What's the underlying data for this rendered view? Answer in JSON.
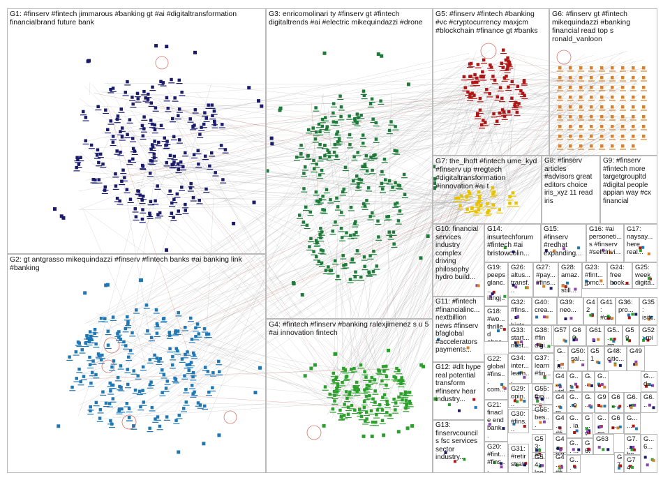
{
  "graph": {
    "colors": {
      "edge": "#9a9a9a",
      "edge_red": "#c0392b",
      "g1": "#1b1b6b",
      "g2": "#1f77b4",
      "g3": "#1e7b3a",
      "g4": "#2ca02c",
      "g5": "#b01515",
      "g6": "#d9822b",
      "g7": "#e6c200",
      "g8": "#8e44ad",
      "panel_border": "#b9b9b9"
    },
    "groups": [
      {
        "id": "G1",
        "label": "G1: #finserv #fintech jimmarous #banking gt #ai #digitaltransformation financialbrand future bank"
      },
      {
        "id": "G2",
        "label": "G2: gt antgrasso mikequindazzi #finserv #fintech banks #ai banking link #banking"
      },
      {
        "id": "G3",
        "label": "G3: enricomolinari ty #finserv gt #fintech digitaltrends #ai #electric mikequindazzi #drone"
      },
      {
        "id": "G4",
        "label": "G4: #fintech #finserv #banking ralexjimenez s u 5 #ai innovation fintech"
      },
      {
        "id": "G5",
        "label": "G5: #finserv #fintech #banking #vc #cryptocurrency maxjcm #blockchain #finance gt #banks"
      },
      {
        "id": "G6",
        "label": "G6: #finserv gt #fintech mikequindazzi #banking financial read top s ronald_vanloon"
      },
      {
        "id": "G7",
        "label": "G7: the_lhoft #fintech ume_kyd #finserv up #regtech #digitaltransformation #innovation #ai t"
      },
      {
        "id": "G8",
        "label": "G8: #finserv articles #advisors great editors choice iris_xyz 11 read iris"
      },
      {
        "id": "G9",
        "label": "G9: #finserv #fintech more targetgroupltd #digital people appian way #cx financial"
      },
      {
        "id": "G10",
        "label": "G10: financial services industry complex driving philosophy hydro build..."
      },
      {
        "id": "G11",
        "label": "G11: #fintech #financialinc... nextbillion news #finserv bfaglobal #accelerators payments..."
      },
      {
        "id": "G12",
        "label": "G12: #dlt hype real potential transform #finserv hear industry..."
      },
      {
        "id": "G13",
        "label": "G13: finservcouncil s fsc services sector industry..."
      },
      {
        "id": "G14",
        "label": "G14: insurtechforum #fintech #ai bristowcolin..."
      },
      {
        "id": "G15",
        "label": "G15: #finserv #redhat expanding..."
      },
      {
        "id": "G16",
        "label": "G16: #ai personeti... s #finserv #selfdrivi..."
      },
      {
        "id": "G17",
        "label": "G17: naysay... here real..."
      },
      {
        "id": "G18",
        "label": "G18: #wo... thrilled ahno..."
      },
      {
        "id": "G19",
        "label": "G19: peeps glanc... iangj..."
      },
      {
        "id": "G20",
        "label": "G20: #fint... #fins... bami..."
      },
      {
        "id": "G21",
        "label": "G21: finacle end bank..."
      },
      {
        "id": "G22",
        "label": "G22: global #fins... com..."
      },
      {
        "id": "G23",
        "label": "G23: #fint... jpmc..."
      },
      {
        "id": "G24",
        "label": "G24: free book..."
      },
      {
        "id": "G25",
        "label": "G25: week digita..."
      },
      {
        "id": "G26",
        "label": "G26: altus... transf..."
      },
      {
        "id": "G27",
        "label": "G27: #pay... #fins..."
      },
      {
        "id": "G28",
        "label": "G28: amaz... still..."
      },
      {
        "id": "G29",
        "label": "G29: opin... #equ..."
      },
      {
        "id": "G30",
        "label": "G30: #fins... data..."
      },
      {
        "id": "G31",
        "label": "G31: #retir strat..."
      },
      {
        "id": "G32",
        "label": "G32: #fins... bizte..."
      },
      {
        "id": "G33",
        "label": "G33: start... nest..."
      },
      {
        "id": "G34",
        "label": "G34: inter... learn..."
      },
      {
        "id": "G35",
        "label": "G35: isitc..."
      },
      {
        "id": "G36",
        "label": "G36: pro..."
      },
      {
        "id": "G37",
        "label": "G37: learn #fin..."
      },
      {
        "id": "G38",
        "label": "G38: #fin digi..."
      },
      {
        "id": "G39",
        "label": "G39: neo..."
      },
      {
        "id": "G40",
        "label": "G40: crea..."
      },
      {
        "id": "G41",
        "label": "G41: #cu..."
      },
      {
        "id": "G42",
        "label": "G42"
      },
      {
        "id": "G47",
        "label": "G4... ca..."
      },
      {
        "id": "G48",
        "label": "G48: citic..."
      },
      {
        "id": "G49",
        "label": "G49"
      },
      {
        "id": "G50",
        "label": "G50: sal..."
      },
      {
        "id": "G51",
        "label": "G51"
      },
      {
        "id": "G52",
        "label": "G52: rpi"
      },
      {
        "id": "G53",
        "label": "G53: ai..."
      },
      {
        "id": "G54",
        "label": "G54: loo..."
      },
      {
        "id": "G55",
        "label": "G55: top..."
      },
      {
        "id": "G56",
        "label": "G56: bes..."
      },
      {
        "id": "G57",
        "label": "G57"
      },
      {
        "id": "G58",
        "label": "G5... ge..."
      },
      {
        "id": "G59",
        "label": "G59"
      },
      {
        "id": "G60",
        "label": "G60"
      },
      {
        "id": "G61",
        "label": "G61"
      },
      {
        "id": "G44",
        "label": "G4... vid..."
      },
      {
        "id": "G45",
        "label": "G4... m..."
      },
      {
        "id": "G46",
        "label": "G4... #fi..."
      },
      {
        "id": "G43",
        "label": "G4... big"
      },
      {
        "id": "G4x",
        "label": "G4... #fi..."
      },
      {
        "id": "Ga1",
        "label": "G... a..."
      },
      {
        "id": "Ga2",
        "label": "G... m..."
      },
      {
        "id": "Ga3",
        "label": "G... o"
      },
      {
        "id": "Ga4",
        "label": "G... ia"
      },
      {
        "id": "Ga5",
        "label": "G... v"
      },
      {
        "id": "Ga6",
        "label": "G... ..."
      },
      {
        "id": "Ga7",
        "label": "G..."
      },
      {
        "id": "Gb1",
        "label": "G... ..."
      },
      {
        "id": "Gb2",
        "label": "G9..."
      },
      {
        "id": "Gb3",
        "label": "G6..."
      },
      {
        "id": "Gb4",
        "label": "G... on..."
      },
      {
        "id": "Gb5",
        "label": "G6..."
      },
      {
        "id": "Gb6",
        "label": "G6..."
      },
      {
        "id": "Gb7",
        "label": "G... d..."
      },
      {
        "id": "Gc1",
        "label": "G6... ..."
      },
      {
        "id": "Gc2",
        "label": "G... ..."
      },
      {
        "id": "Gc3",
        "label": "G7... he... ze..."
      },
      {
        "id": "G63",
        "label": "G63"
      },
      {
        "id": "Gd1",
        "label": "G... ..."
      },
      {
        "id": "Gd2",
        "label": "G6..."
      },
      {
        "id": "Gd3",
        "label": "G7..."
      },
      {
        "id": "Gd4",
        "label": "G... ..."
      },
      {
        "id": "G74",
        "label": "G74"
      },
      {
        "id": "Gd5",
        "label": "G... 6..."
      }
    ]
  }
}
